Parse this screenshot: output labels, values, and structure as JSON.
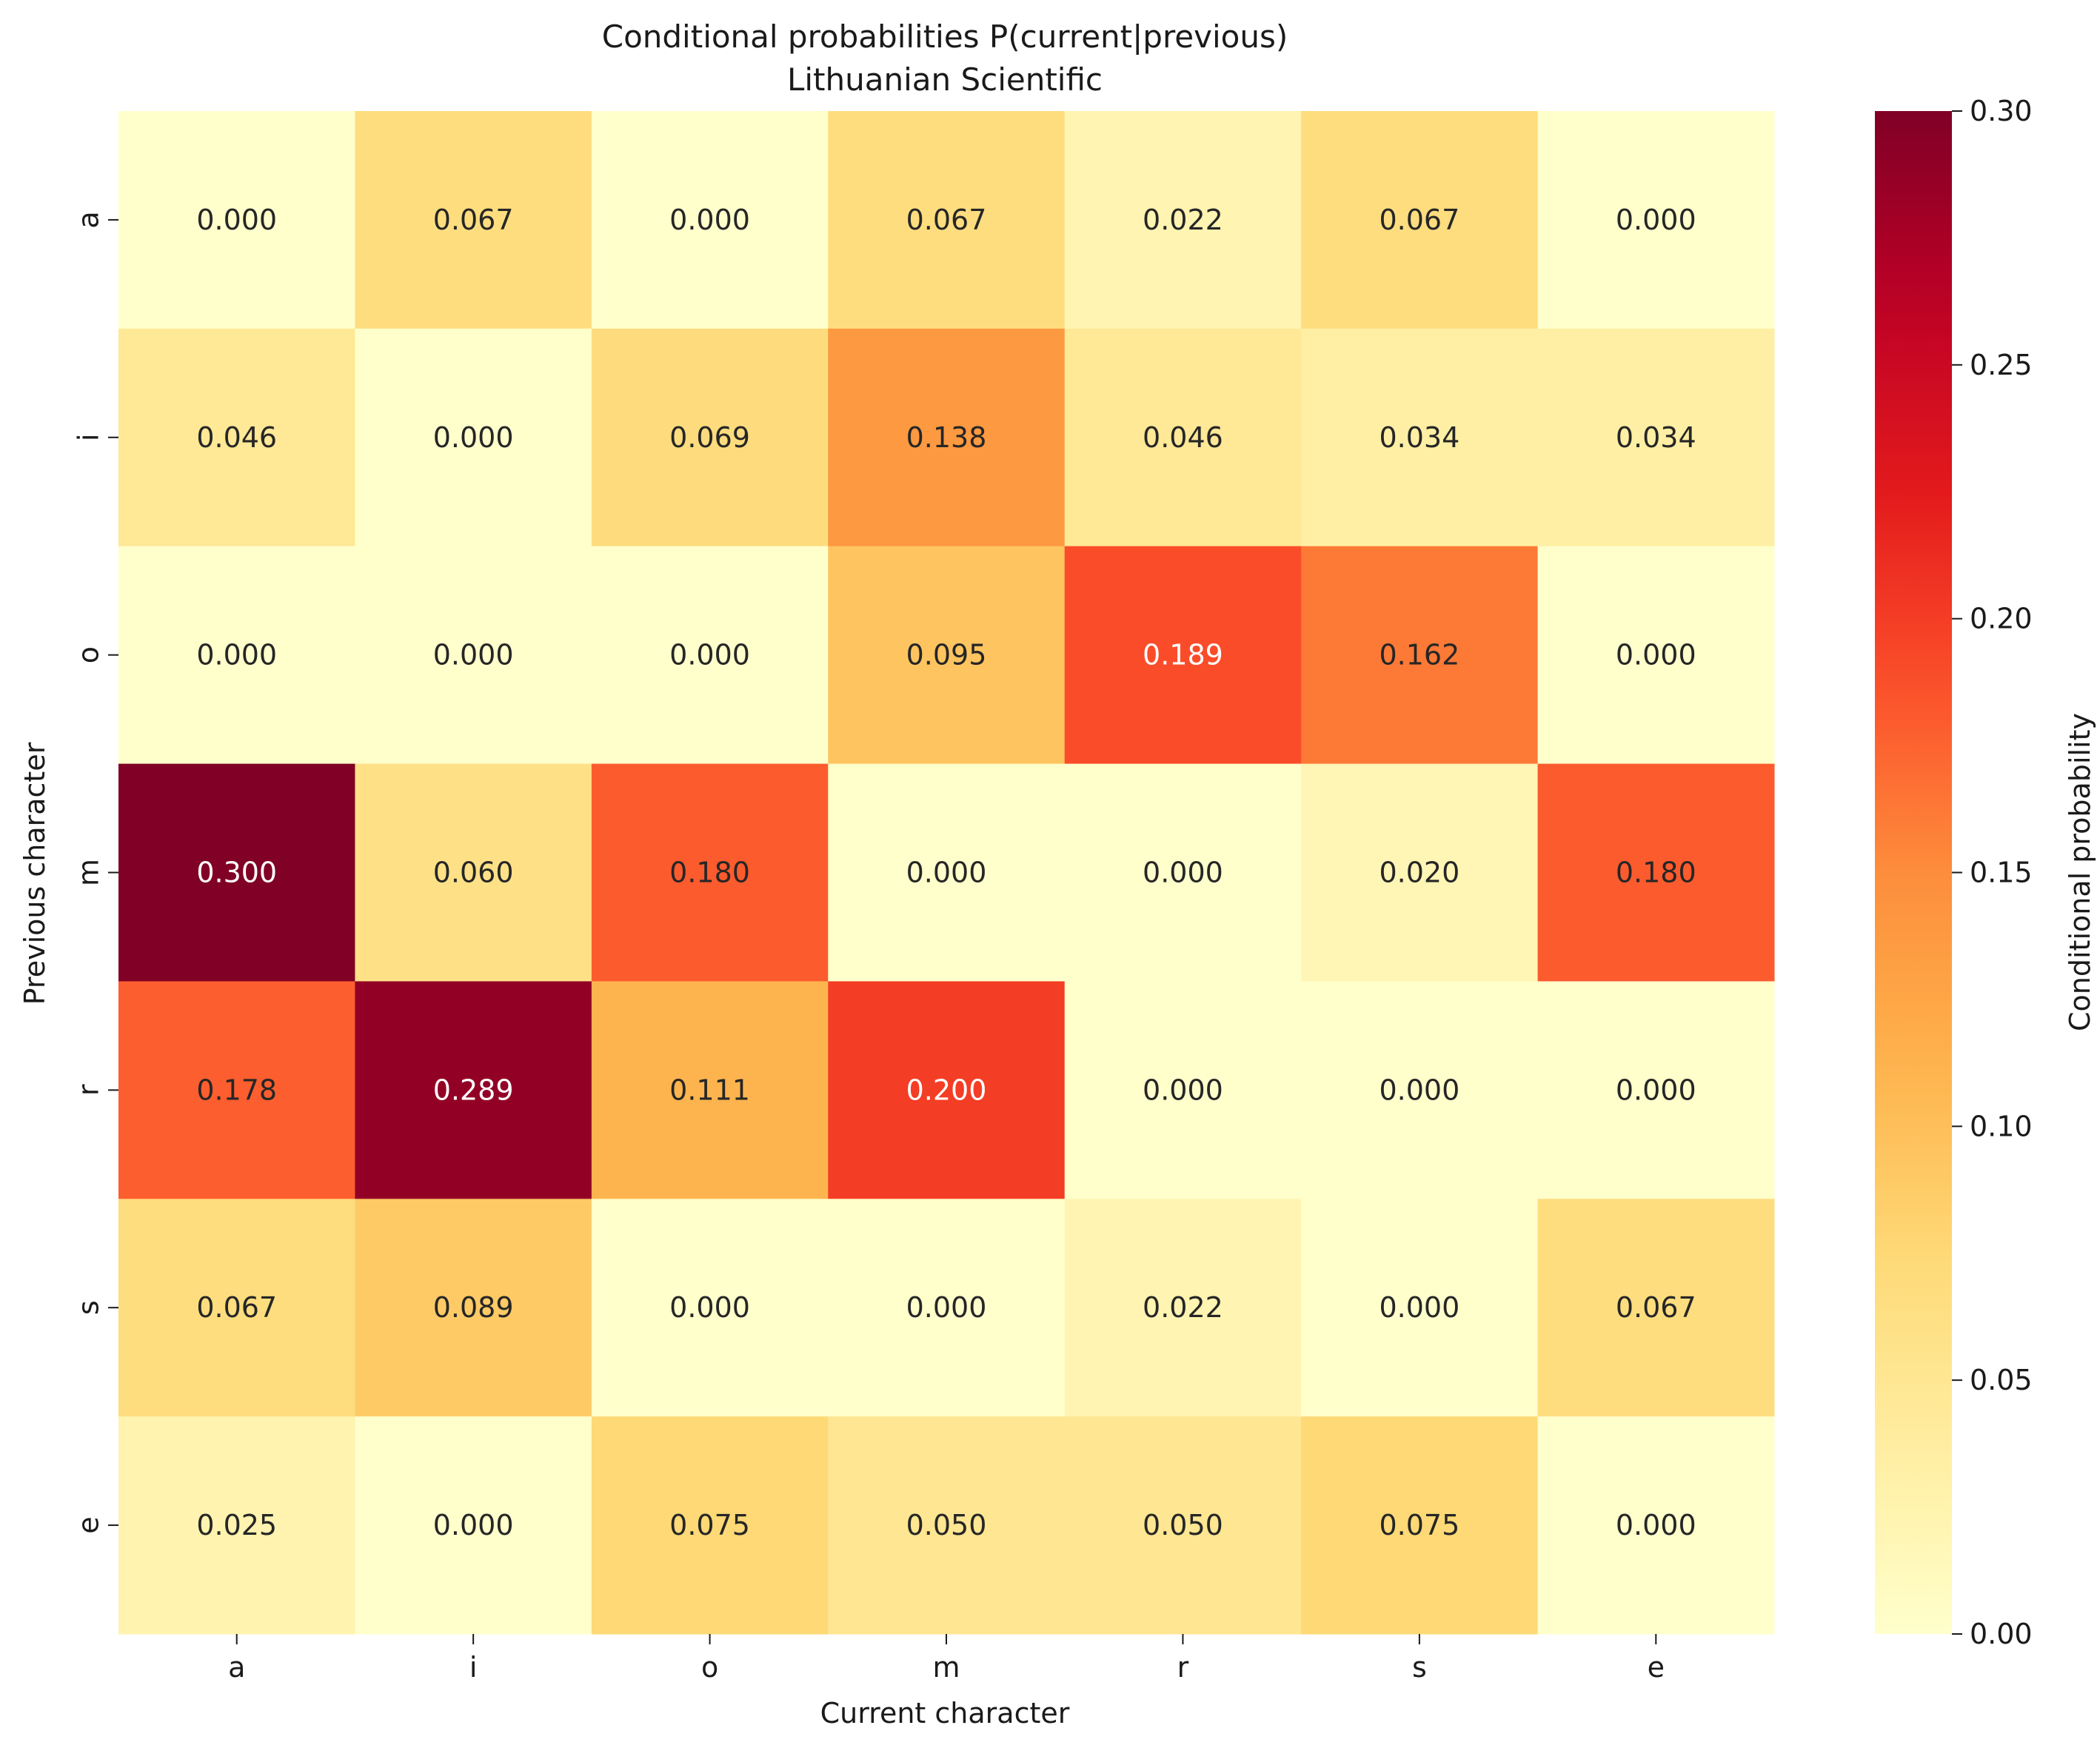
{
  "chart_data": {
    "type": "heatmap",
    "title": "Conditional probabilities P(current|previous)",
    "subtitle": "Lithuanian Scientific",
    "xlabel": "Current character",
    "ylabel": "Previous character",
    "x_categories": [
      "a",
      "i",
      "o",
      "m",
      "r",
      "s",
      "e"
    ],
    "y_categories": [
      "a",
      "i",
      "o",
      "m",
      "r",
      "s",
      "e"
    ],
    "values": [
      [
        0.0,
        0.067,
        0.0,
        0.067,
        0.022,
        0.067,
        0.0
      ],
      [
        0.046,
        0.0,
        0.069,
        0.138,
        0.046,
        0.034,
        0.034
      ],
      [
        0.0,
        0.0,
        0.0,
        0.095,
        0.189,
        0.162,
        0.0
      ],
      [
        0.3,
        0.06,
        0.18,
        0.0,
        0.0,
        0.02,
        0.18
      ],
      [
        0.178,
        0.289,
        0.111,
        0.2,
        0.0,
        0.0,
        0.0
      ],
      [
        0.067,
        0.089,
        0.0,
        0.0,
        0.022,
        0.0,
        0.067
      ],
      [
        0.025,
        0.0,
        0.075,
        0.05,
        0.05,
        0.075,
        0.0
      ]
    ],
    "colormap": "YlOrRd",
    "vmin": 0.0,
    "vmax": 0.3,
    "colorbar": {
      "label": "Conditional probability",
      "ticks": [
        0.0,
        0.05,
        0.1,
        0.15,
        0.2,
        0.25,
        0.3
      ],
      "tick_labels": [
        "0.00",
        "0.05",
        "0.10",
        "0.15",
        "0.20",
        "0.25",
        "0.30"
      ]
    },
    "annotation_format": "3 decimals"
  }
}
